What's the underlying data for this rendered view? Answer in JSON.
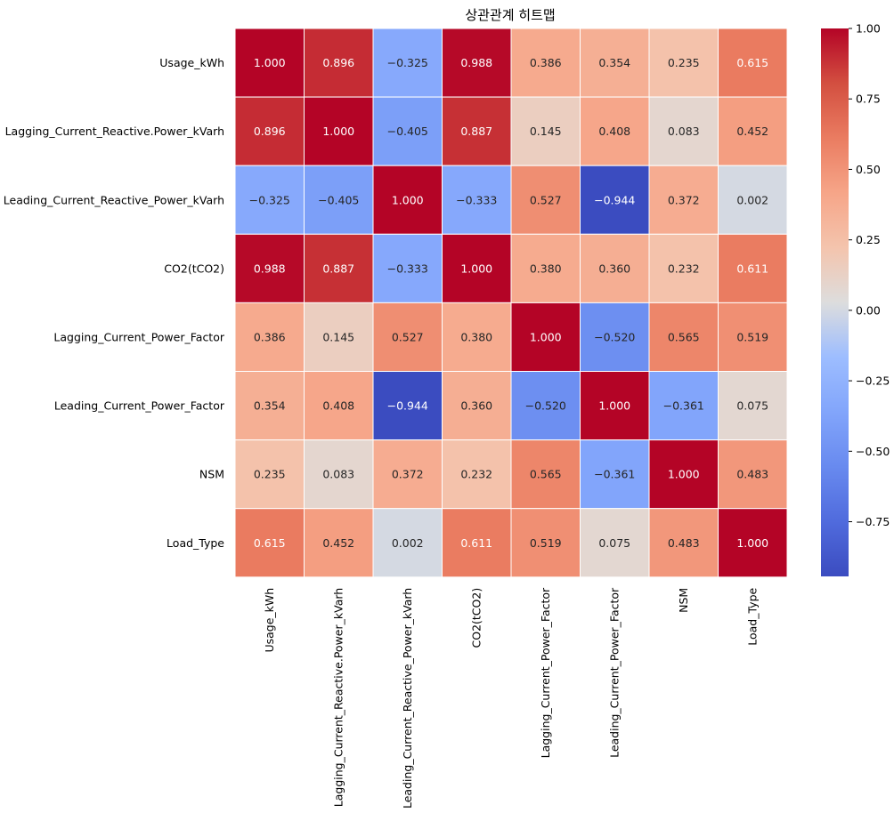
{
  "chart_data": {
    "type": "heatmap",
    "title": "상관관계 히트맵",
    "xlabel": "",
    "ylabel": "",
    "colormap": "coolwarm",
    "value_range": [
      -0.944,
      1.0
    ],
    "annotation_format": "0.000",
    "row_labels": [
      "Usage_kWh",
      "Lagging_Current_Reactive.Power_kVarh",
      "Leading_Current_Reactive_Power_kVarh",
      "CO2(tCO2)",
      "Lagging_Current_Power_Factor",
      "Leading_Current_Power_Factor",
      "NSM",
      "Load_Type"
    ],
    "col_labels": [
      "Usage_kWh",
      "Lagging_Current_Reactive.Power_kVarh",
      "Leading_Current_Reactive_Power_kVarh",
      "CO2(tCO2)",
      "Lagging_Current_Power_Factor",
      "Leading_Current_Power_Factor",
      "NSM",
      "Load_Type"
    ],
    "values": [
      [
        1.0,
        0.896,
        -0.325,
        0.988,
        0.386,
        0.354,
        0.235,
        0.615
      ],
      [
        0.896,
        1.0,
        -0.405,
        0.887,
        0.145,
        0.408,
        0.083,
        0.452
      ],
      [
        -0.325,
        -0.405,
        1.0,
        -0.333,
        0.527,
        -0.944,
        0.372,
        0.002
      ],
      [
        0.988,
        0.887,
        -0.333,
        1.0,
        0.38,
        0.36,
        0.232,
        0.611
      ],
      [
        0.386,
        0.145,
        0.527,
        0.38,
        1.0,
        -0.52,
        0.565,
        0.519
      ],
      [
        0.354,
        0.408,
        -0.944,
        0.36,
        -0.52,
        1.0,
        -0.361,
        0.075
      ],
      [
        0.235,
        0.083,
        0.372,
        0.232,
        0.565,
        -0.361,
        1.0,
        0.483
      ],
      [
        0.615,
        0.452,
        0.002,
        0.611,
        0.519,
        0.075,
        0.483,
        1.0
      ]
    ],
    "colorbar_ticks": [
      1.0,
      0.75,
      0.5,
      0.25,
      0.0,
      -0.25,
      -0.5,
      -0.75
    ],
    "colorbar_tick_labels": [
      "1.00",
      "0.75",
      "0.50",
      "0.25",
      "0.00",
      "−0.25",
      "−0.50",
      "−0.75"
    ],
    "grid": false,
    "cell_border_color": "#ffffff",
    "text_color_dark": "#262626",
    "text_color_light": "#ffffff"
  }
}
